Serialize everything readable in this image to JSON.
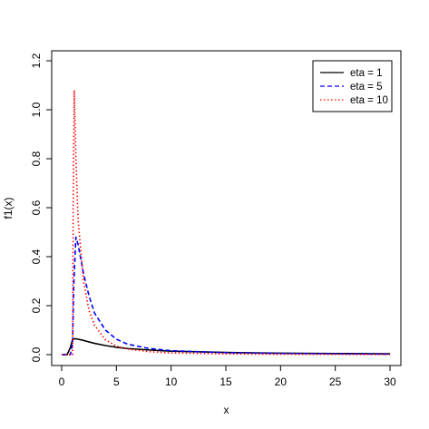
{
  "chart_data": {
    "type": "line",
    "title": "",
    "xlabel": "x",
    "ylabel": "f1(x)",
    "xlim": [
      0,
      30
    ],
    "ylim": [
      0,
      1.2
    ],
    "xticks": [
      0,
      5,
      10,
      15,
      20,
      25,
      30
    ],
    "yticks": [
      0.0,
      0.2,
      0.4,
      0.6,
      0.8,
      1.0,
      1.2
    ],
    "xtick_labels": [
      "0",
      "5",
      "10",
      "15",
      "20",
      "25",
      "30"
    ],
    "ytick_labels": [
      "0.0",
      "0.2",
      "0.4",
      "0.6",
      "0.8",
      "1.0",
      "1.2"
    ],
    "grid": false,
    "legend_position": "top-right",
    "series": [
      {
        "name": "eta = 1",
        "color": "#000000",
        "dash": "solid",
        "x": [
          0.0,
          0.5,
          0.8,
          1.0,
          1.2,
          1.5,
          2,
          3,
          4,
          5,
          6,
          8,
          10,
          15,
          20,
          25,
          30
        ],
        "y": [
          0.0,
          0.0,
          0.03,
          0.062,
          0.065,
          0.063,
          0.058,
          0.046,
          0.037,
          0.03,
          0.025,
          0.019,
          0.014,
          0.009,
          0.006,
          0.0045,
          0.0035
        ]
      },
      {
        "name": "eta = 5",
        "color": "#0000ff",
        "dash": "dashed",
        "x": [
          0.0,
          0.5,
          0.8,
          1.0,
          1.1,
          1.3,
          1.5,
          2,
          2.5,
          3,
          4,
          5,
          6,
          8,
          10,
          15,
          20,
          30
        ],
        "y": [
          0.0,
          0.0,
          0.0,
          0.05,
          0.28,
          0.48,
          0.45,
          0.33,
          0.24,
          0.17,
          0.1,
          0.063,
          0.043,
          0.025,
          0.016,
          0.008,
          0.005,
          0.002
        ]
      },
      {
        "name": "eta = 10",
        "color": "#ff0000",
        "dash": "dotted",
        "x": [
          0.0,
          0.5,
          0.8,
          1.0,
          1.05,
          1.15,
          1.3,
          1.5,
          2,
          2.5,
          3,
          4,
          5,
          6,
          8,
          10,
          15,
          20,
          30
        ],
        "y": [
          0.0,
          0.0,
          0.0,
          0.0,
          0.6,
          1.08,
          0.8,
          0.55,
          0.3,
          0.18,
          0.12,
          0.06,
          0.035,
          0.023,
          0.012,
          0.007,
          0.003,
          0.0015,
          0.0005
        ]
      }
    ]
  }
}
